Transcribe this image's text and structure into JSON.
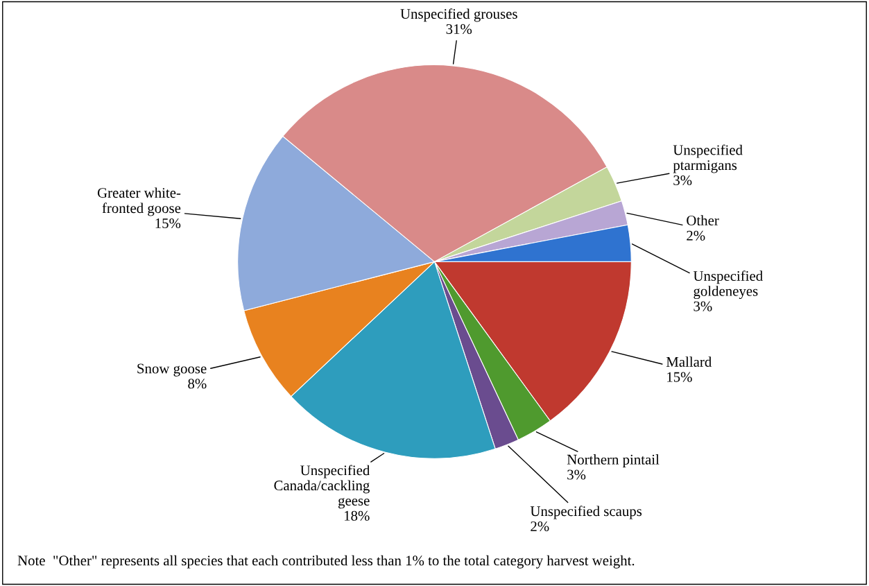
{
  "chart_data": {
    "type": "pie",
    "categories": [
      "Mallard",
      "Northern pintail",
      "Unspecified scaups",
      "Unspecified\nCanada/cackling\ngeese",
      "Snow goose",
      "Greater white-\nfronted goose",
      "Unspecified grouses",
      "Unspecified\nptarmigans",
      "Other",
      "Unspecified\ngoldeneyes"
    ],
    "values": [
      15,
      3,
      2,
      18,
      8,
      15,
      31,
      3,
      2,
      3
    ],
    "value_labels": [
      "15%",
      "3%",
      "2%",
      "18%",
      "8%",
      "15%",
      "31%",
      "3%",
      "2%",
      "3%"
    ],
    "colors": [
      "#c0392f",
      "#4f9a2e",
      "#6a4c8f",
      "#2e9dbd",
      "#e8821f",
      "#8eaadb",
      "#d98a89",
      "#c3d69b",
      "#b8a6d4",
      "#2f73d0"
    ],
    "legend": false,
    "annotations": [
      "Note  \"Other\" represents all species that each contributed less than 1% to the total category harvest weight."
    ]
  }
}
